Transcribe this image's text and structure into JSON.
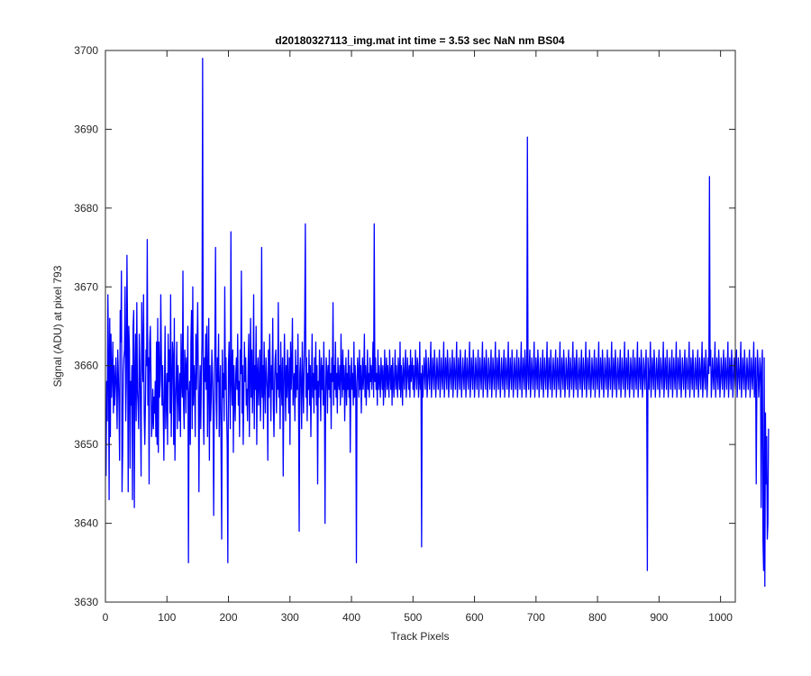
{
  "chart_data": {
    "type": "line",
    "title": "d20180327113_img.mat int time = 3.53 sec  NaN nm BS04",
    "xlabel": "Track Pixels",
    "ylabel": "Signal (ADU) at pixel 793",
    "xlim": [
      0,
      1024
    ],
    "ylim": [
      3630,
      3700
    ],
    "x_ticks": [
      0,
      100,
      200,
      300,
      400,
      500,
      600,
      700,
      800,
      900,
      1000
    ],
    "y_ticks": [
      3630,
      3640,
      3650,
      3660,
      3670,
      3680,
      3690,
      3700
    ],
    "grid": false,
    "series": [
      {
        "color": "#0000ff",
        "x_start": 1,
        "x_step": 1,
        "values": [
          3646,
          3658,
          3653,
          3669,
          3661,
          3643,
          3666,
          3651,
          3664,
          3656,
          3659,
          3663,
          3654,
          3660,
          3655,
          3658,
          3661,
          3657,
          3652,
          3662,
          3659,
          3655,
          3648,
          3667,
          3663,
          3672,
          3644,
          3649,
          3659,
          3661,
          3662,
          3670,
          3653,
          3658,
          3674,
          3664,
          3644,
          3665,
          3662,
          3647,
          3658,
          3655,
          3660,
          3643,
          3665,
          3667,
          3642,
          3659,
          3664,
          3653,
          3668,
          3657,
          3655,
          3652,
          3664,
          3660,
          3654,
          3646,
          3668,
          3661,
          3658,
          3669,
          3654,
          3650,
          3655,
          3662,
          3660,
          3676,
          3655,
          3661,
          3645,
          3663,
          3665,
          3659,
          3651,
          3653,
          3657,
          3652,
          3656,
          3654,
          3658,
          3651,
          3663,
          3650,
          3666,
          3649,
          3663,
          3656,
          3658,
          3669,
          3661,
          3655,
          3660,
          3654,
          3648,
          3657,
          3665,
          3652,
          3656,
          3659,
          3650,
          3664,
          3658,
          3662,
          3654,
          3669,
          3651,
          3657,
          3663,
          3661,
          3650,
          3666,
          3648,
          3655,
          3658,
          3663,
          3652,
          3660,
          3657,
          3653,
          3659,
          3651,
          3664,
          3658,
          3656,
          3672,
          3655,
          3652,
          3662,
          3660,
          3654,
          3661,
          3657,
          3665,
          3635,
          3656,
          3658,
          3650,
          3663,
          3667,
          3652,
          3670,
          3655,
          3660,
          3658,
          3651,
          3664,
          3657,
          3662,
          3668,
          3658,
          3644,
          3656,
          3660,
          3652,
          3659,
          3663,
          3699,
          3655,
          3650,
          3661,
          3658,
          3664,
          3657,
          3665,
          3651,
          3659,
          3666,
          3648,
          3660,
          3653,
          3656,
          3662,
          3659,
          3654,
          3641,
          3657,
          3663,
          3675,
          3656,
          3652,
          3661,
          3658,
          3664,
          3651,
          3657,
          3660,
          3649,
          3638,
          3662,
          3656,
          3659,
          3653,
          3670,
          3657,
          3661,
          3654,
          3650,
          3635,
          3660,
          3663,
          3657,
          3652,
          3677,
          3658,
          3655,
          3662,
          3649,
          3660,
          3656,
          3653,
          3659,
          3661,
          3657,
          3664,
          3655,
          3658,
          3651,
          3662,
          3659,
          3672,
          3654,
          3660,
          3650,
          3656,
          3663,
          3658,
          3661,
          3655,
          3657,
          3653,
          3660,
          3664,
          3651,
          3659,
          3666,
          3656,
          3662,
          3654,
          3658,
          3669,
          3652,
          3660,
          3657,
          3665,
          3650,
          3659,
          3661,
          3655,
          3658,
          3662,
          3653,
          3657,
          3675,
          3656,
          3660,
          3652,
          3663,
          3658,
          3654,
          3661,
          3659,
          3657,
          3648,
          3662,
          3656,
          3664,
          3659,
          3653,
          3660,
          3657,
          3666,
          3655,
          3651,
          3658,
          3661,
          3662,
          3654,
          3659,
          3657,
          3668,
          3656,
          3660,
          3652,
          3663,
          3658,
          3655,
          3661,
          3646,
          3657,
          3664,
          3659,
          3653,
          3660,
          3656,
          3662,
          3658,
          3654,
          3661,
          3650,
          3663,
          3657,
          3660,
          3666,
          3655,
          3658,
          3659,
          3653,
          3662,
          3656,
          3660,
          3657,
          3664,
          3655,
          3639,
          3659,
          3661,
          3657,
          3652,
          3663,
          3658,
          3654,
          3660,
          3666,
          3678,
          3656,
          3661,
          3653,
          3659,
          3657,
          3662,
          3655,
          3660,
          3651,
          3658,
          3664,
          3656,
          3659,
          3654,
          3661,
          3657,
          3663,
          3655,
          3660,
          3645,
          3658,
          3656,
          3662,
          3659,
          3653,
          3661,
          3657,
          3660,
          3655,
          3663,
          3658,
          3640,
          3656,
          3661,
          3659,
          3654,
          3660,
          3657,
          3662,
          3656,
          3659,
          3652,
          3661,
          3658,
          3668,
          3655,
          3660,
          3657,
          3663,
          3656,
          3659,
          3654,
          3661,
          3658,
          3657,
          3660,
          3655,
          3664,
          3659,
          3656,
          3662,
          3657,
          3660,
          3653,
          3658,
          3661,
          3655,
          3659,
          3657,
          3662,
          3656,
          3660,
          3649,
          3658,
          3661,
          3657,
          3659,
          3655,
          3663,
          3656,
          3660,
          3657,
          3635,
          3658,
          3661,
          3659,
          3656,
          3662,
          3657,
          3660,
          3654,
          3658,
          3661,
          3657,
          3659,
          3664,
          3656,
          3660,
          3655,
          3658,
          3662,
          3657,
          3659,
          3656,
          3661,
          3658,
          3660,
          3657,
          3659,
          3663,
          3656,
          3678,
          3658,
          3661,
          3657,
          3659,
          3655,
          3662,
          3657,
          3660,
          3658,
          3656,
          3661,
          3659,
          3657,
          3660,
          3655,
          3658,
          3662,
          3656,
          3659,
          3661,
          3657,
          3660,
          3658,
          3656,
          3662,
          3659,
          3657,
          3660,
          3655,
          3661,
          3658,
          3656,
          3659,
          3662,
          3657,
          3660,
          3658,
          3656,
          3661,
          3659,
          3657,
          3663,
          3656,
          3660,
          3658,
          3655,
          3661,
          3659,
          3657,
          3660,
          3662,
          3656,
          3658,
          3661,
          3659,
          3657,
          3660,
          3656,
          3662,
          3658,
          3659,
          3661,
          3657,
          3660,
          3656,
          3658,
          3662,
          3659,
          3657,
          3661,
          3660,
          3656,
          3658,
          3663,
          3657,
          3659,
          3637,
          3660,
          3656,
          3658,
          3661,
          3659,
          3657,
          3662,
          3660,
          3656,
          3658,
          3661,
          3659,
          3657,
          3660,
          3663,
          3656,
          3658,
          3661,
          3659,
          3657,
          3662,
          3660,
          3656,
          3658,
          3661,
          3659,
          3657,
          3660,
          3662,
          3656,
          3658,
          3661,
          3659,
          3657,
          3660,
          3663,
          3656,
          3658,
          3661,
          3659,
          3657,
          3662,
          3660,
          3656,
          3658,
          3661,
          3659,
          3657,
          3660,
          3662,
          3656,
          3658,
          3661,
          3659,
          3657,
          3660,
          3663,
          3656,
          3658,
          3661,
          3659,
          3657,
          3662,
          3660,
          3656,
          3658,
          3661,
          3659,
          3657,
          3660,
          3662,
          3656,
          3658,
          3661,
          3659,
          3657,
          3660,
          3663,
          3656,
          3658,
          3661,
          3659,
          3657,
          3662,
          3660,
          3656,
          3658,
          3661,
          3659,
          3657,
          3660,
          3662,
          3656,
          3658,
          3661,
          3659,
          3657,
          3660,
          3663,
          3656,
          3658,
          3661,
          3659,
          3657,
          3662,
          3660,
          3656,
          3658,
          3661,
          3659,
          3657,
          3660,
          3662,
          3656,
          3658,
          3661,
          3659,
          3657,
          3660,
          3663,
          3656,
          3658,
          3661,
          3659,
          3657,
          3662,
          3660,
          3656,
          3658,
          3661,
          3659,
          3657,
          3660,
          3662,
          3656,
          3658,
          3661,
          3659,
          3657,
          3660,
          3663,
          3656,
          3658,
          3661,
          3659,
          3657,
          3662,
          3660,
          3656,
          3658,
          3661,
          3659,
          3657,
          3660,
          3662,
          3656,
          3658,
          3661,
          3659,
          3657,
          3660,
          3663,
          3656,
          3658,
          3661,
          3659,
          3657,
          3662,
          3660,
          3656,
          3658,
          3689,
          3659,
          3657,
          3660,
          3662,
          3656,
          3658,
          3661,
          3659,
          3657,
          3660,
          3663,
          3656,
          3658,
          3661,
          3659,
          3657,
          3662,
          3660,
          3656,
          3658,
          3661,
          3659,
          3657,
          3660,
          3662,
          3656,
          3658,
          3661,
          3659,
          3657,
          3660,
          3663,
          3656,
          3658,
          3661,
          3659,
          3657,
          3662,
          3660,
          3656,
          3658,
          3661,
          3659,
          3657,
          3660,
          3662,
          3656,
          3658,
          3661,
          3659,
          3657,
          3660,
          3663,
          3656,
          3658,
          3661,
          3659,
          3657,
          3662,
          3660,
          3656,
          3658,
          3661,
          3659,
          3657,
          3660,
          3662,
          3656,
          3658,
          3661,
          3659,
          3657,
          3660,
          3663,
          3656,
          3658,
          3661,
          3659,
          3657,
          3662,
          3660,
          3656,
          3658,
          3661,
          3659,
          3657,
          3660,
          3662,
          3656,
          3658,
          3661,
          3659,
          3657,
          3660,
          3663,
          3656,
          3658,
          3661,
          3659,
          3657,
          3662,
          3660,
          3656,
          3658,
          3661,
          3659,
          3657,
          3660,
          3662,
          3656,
          3658,
          3661,
          3659,
          3657,
          3660,
          3663,
          3656,
          3658,
          3661,
          3659,
          3657,
          3662,
          3660,
          3656,
          3658,
          3661,
          3659,
          3657,
          3660,
          3662,
          3656,
          3658,
          3661,
          3659,
          3657,
          3660,
          3663,
          3656,
          3658,
          3661,
          3659,
          3657,
          3662,
          3660,
          3656,
          3658,
          3661,
          3659,
          3657,
          3660,
          3662,
          3656,
          3658,
          3661,
          3659,
          3657,
          3660,
          3663,
          3656,
          3658,
          3661,
          3659,
          3657,
          3662,
          3660,
          3656,
          3658,
          3661,
          3659,
          3657,
          3660,
          3662,
          3656,
          3658,
          3661,
          3659,
          3657,
          3660,
          3663,
          3656,
          3658,
          3661,
          3659,
          3657,
          3662,
          3660,
          3656,
          3658,
          3661,
          3659,
          3657,
          3660,
          3662,
          3656,
          3634,
          3661,
          3659,
          3657,
          3660,
          3663,
          3656,
          3658,
          3661,
          3659,
          3657,
          3662,
          3660,
          3656,
          3658,
          3661,
          3659,
          3657,
          3660,
          3662,
          3656,
          3658,
          3661,
          3659,
          3657,
          3660,
          3663,
          3656,
          3658,
          3661,
          3659,
          3657,
          3662,
          3660,
          3656,
          3658,
          3661,
          3659,
          3657,
          3660,
          3662,
          3656,
          3658,
          3661,
          3659,
          3657,
          3660,
          3663,
          3656,
          3658,
          3661,
          3659,
          3657,
          3662,
          3660,
          3656,
          3658,
          3661,
          3659,
          3657,
          3660,
          3662,
          3656,
          3658,
          3661,
          3659,
          3657,
          3660,
          3663,
          3656,
          3658,
          3661,
          3659,
          3657,
          3662,
          3660,
          3656,
          3658,
          3661,
          3659,
          3657,
          3660,
          3662,
          3656,
          3658,
          3661,
          3659,
          3657,
          3660,
          3663,
          3656,
          3658,
          3661,
          3659,
          3657,
          3662,
          3660,
          3656,
          3658,
          3661,
          3659,
          3684,
          3660,
          3662,
          3656,
          3658,
          3661,
          3659,
          3657,
          3660,
          3663,
          3656,
          3658,
          3661,
          3659,
          3657,
          3662,
          3660,
          3656,
          3658,
          3661,
          3659,
          3657,
          3660,
          3662,
          3656,
          3658,
          3661,
          3659,
          3657,
          3660,
          3663,
          3656,
          3658,
          3661,
          3659,
          3657,
          3662,
          3660,
          3656,
          3658,
          3661,
          3659,
          3657,
          3660,
          3662,
          3656,
          3658,
          3661,
          3659,
          3657,
          3660,
          3663,
          3656,
          3658,
          3661,
          3659,
          3657,
          3662,
          3660,
          3656,
          3658,
          3661,
          3659,
          3657,
          3660,
          3662,
          3656,
          3658,
          3661,
          3659,
          3657,
          3660,
          3663,
          3656,
          3658,
          3661,
          3645,
          3657,
          3662,
          3660,
          3656,
          3658,
          3661,
          3659,
          3642,
          3660,
          3662,
          3638,
          3634,
          3661,
          3632,
          3654,
          3645,
          3651,
          3638,
          3640,
          3652
        ]
      }
    ]
  }
}
